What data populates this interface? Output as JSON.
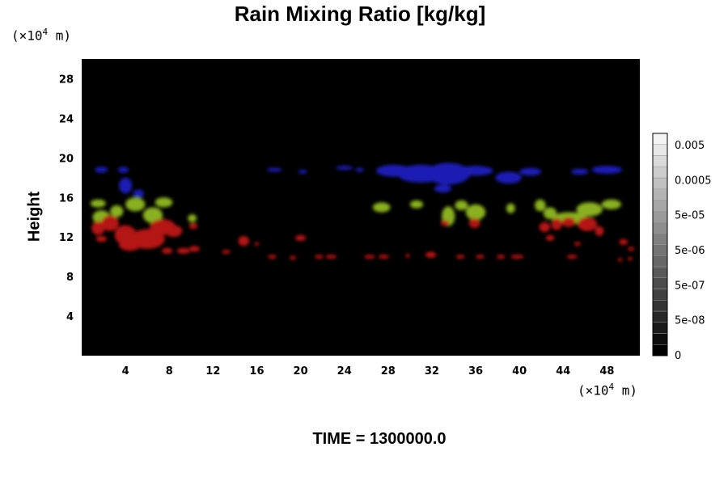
{
  "title": "Rain Mixing Ratio [kg/kg]",
  "ylabel": "Height",
  "y_unit": {
    "open": "(×10",
    "exp": "4",
    "close": " m)"
  },
  "x_unit": {
    "open": "(×10",
    "exp": "4",
    "close": " m)"
  },
  "time_label": "TIME = 1300000.0",
  "chart_data": {
    "type": "heatmap",
    "title": "Rain Mixing Ratio [kg/kg]",
    "xlabel": "",
    "ylabel": "Height",
    "xlim": [
      0,
      51
    ],
    "ylim": [
      0,
      30
    ],
    "x_ticks": [
      "4",
      "8",
      "12",
      "16",
      "20",
      "24",
      "28",
      "32",
      "36",
      "40",
      "44",
      "48"
    ],
    "y_ticks": [
      "4",
      "8",
      "12",
      "16",
      "20",
      "24",
      "28"
    ],
    "colorbar": {
      "labels": [
        "0",
        "5e-08",
        "5e-07",
        "5e-06",
        "5e-05",
        "0.0005",
        "0.005"
      ],
      "dark": "#000000",
      "light": "#f4f4f4"
    },
    "background": "#000000",
    "layers": [
      {
        "color": "#1a1ab4",
        "blobs": [
          [
            1.8,
            18.8,
            0.6,
            0.3
          ],
          [
            3.8,
            18.8,
            0.5,
            0.3
          ],
          [
            4.0,
            17.2,
            0.6,
            0.8
          ],
          [
            5.2,
            16.4,
            0.5,
            0.4
          ],
          [
            17.6,
            18.8,
            0.7,
            0.2
          ],
          [
            20.2,
            18.6,
            0.4,
            0.2
          ],
          [
            24.0,
            19.0,
            0.8,
            0.2
          ],
          [
            25.4,
            18.8,
            0.4,
            0.2
          ],
          [
            28.5,
            18.7,
            1.6,
            0.6
          ],
          [
            31.0,
            18.4,
            2.2,
            0.9
          ],
          [
            33.5,
            18.4,
            2.0,
            1.1
          ],
          [
            33.0,
            16.9,
            0.8,
            0.4
          ],
          [
            36.0,
            18.7,
            1.6,
            0.5
          ],
          [
            39.0,
            18.0,
            1.2,
            0.6
          ],
          [
            41.0,
            18.6,
            1.0,
            0.4
          ],
          [
            45.5,
            18.6,
            0.8,
            0.3
          ],
          [
            48.0,
            18.8,
            1.4,
            0.4
          ]
        ]
      },
      {
        "color": "#8ab020",
        "blobs": [
          [
            1.5,
            15.4,
            0.7,
            0.4
          ],
          [
            1.8,
            14.0,
            0.8,
            0.7
          ],
          [
            3.2,
            14.6,
            0.6,
            0.6
          ],
          [
            4.9,
            15.3,
            0.9,
            0.7
          ],
          [
            6.5,
            14.2,
            0.9,
            0.8
          ],
          [
            7.5,
            15.5,
            0.8,
            0.5
          ],
          [
            10.1,
            13.9,
            0.4,
            0.4
          ],
          [
            27.4,
            15.0,
            0.8,
            0.5
          ],
          [
            30.6,
            15.3,
            0.6,
            0.4
          ],
          [
            33.5,
            14.1,
            0.6,
            1.0
          ],
          [
            34.7,
            15.2,
            0.6,
            0.5
          ],
          [
            36.0,
            14.5,
            0.9,
            0.8
          ],
          [
            39.2,
            14.9,
            0.4,
            0.5
          ],
          [
            41.9,
            15.2,
            0.5,
            0.6
          ],
          [
            42.8,
            14.4,
            0.6,
            0.6
          ],
          [
            44.6,
            13.9,
            1.6,
            0.6
          ],
          [
            46.4,
            14.8,
            1.2,
            0.7
          ],
          [
            48.4,
            15.3,
            0.9,
            0.5
          ]
        ]
      },
      {
        "color": "#b41414",
        "blobs": [
          [
            1.5,
            12.9,
            0.6,
            0.7
          ],
          [
            2.6,
            13.4,
            0.8,
            0.8
          ],
          [
            1.8,
            11.8,
            0.5,
            0.3
          ],
          [
            4.0,
            12.2,
            1.0,
            1.0
          ],
          [
            4.4,
            11.2,
            1.0,
            0.6
          ],
          [
            6.0,
            11.8,
            1.6,
            1.0
          ],
          [
            7.4,
            13.0,
            1.2,
            0.8
          ],
          [
            8.4,
            12.6,
            0.8,
            0.6
          ],
          [
            7.8,
            10.6,
            0.5,
            0.3
          ],
          [
            9.3,
            10.6,
            0.6,
            0.3
          ],
          [
            10.3,
            10.8,
            0.5,
            0.3
          ],
          [
            10.2,
            13.1,
            0.4,
            0.3
          ],
          [
            13.2,
            10.5,
            0.4,
            0.2
          ],
          [
            14.8,
            11.6,
            0.5,
            0.5
          ],
          [
            16.0,
            11.3,
            0.2,
            0.2
          ],
          [
            17.4,
            10.0,
            0.4,
            0.2
          ],
          [
            19.3,
            9.9,
            0.3,
            0.2
          ],
          [
            20.0,
            11.9,
            0.5,
            0.3
          ],
          [
            21.7,
            10.0,
            0.4,
            0.2
          ],
          [
            22.8,
            10.0,
            0.5,
            0.2
          ],
          [
            26.3,
            10.0,
            0.5,
            0.2
          ],
          [
            27.6,
            10.0,
            0.5,
            0.2
          ],
          [
            29.8,
            10.1,
            0.2,
            0.2
          ],
          [
            31.9,
            10.2,
            0.5,
            0.3
          ],
          [
            34.6,
            10.0,
            0.4,
            0.2
          ],
          [
            36.4,
            10.0,
            0.4,
            0.2
          ],
          [
            38.3,
            10.0,
            0.4,
            0.2
          ],
          [
            39.8,
            10.0,
            0.6,
            0.2
          ],
          [
            33.2,
            13.4,
            0.4,
            0.3
          ],
          [
            35.9,
            13.4,
            0.5,
            0.5
          ],
          [
            42.3,
            13.0,
            0.5,
            0.5
          ],
          [
            43.4,
            13.3,
            0.5,
            0.6
          ],
          [
            44.5,
            13.5,
            0.6,
            0.5
          ],
          [
            46.2,
            13.3,
            0.9,
            0.7
          ],
          [
            47.3,
            12.6,
            0.4,
            0.5
          ],
          [
            42.8,
            11.9,
            0.4,
            0.3
          ],
          [
            45.3,
            11.3,
            0.3,
            0.2
          ],
          [
            44.8,
            10.0,
            0.5,
            0.2
          ],
          [
            49.5,
            11.5,
            0.4,
            0.3
          ],
          [
            50.2,
            10.8,
            0.3,
            0.2
          ],
          [
            49.2,
            9.7,
            0.2,
            0.2
          ],
          [
            50.1,
            9.8,
            0.2,
            0.2
          ]
        ]
      }
    ]
  }
}
